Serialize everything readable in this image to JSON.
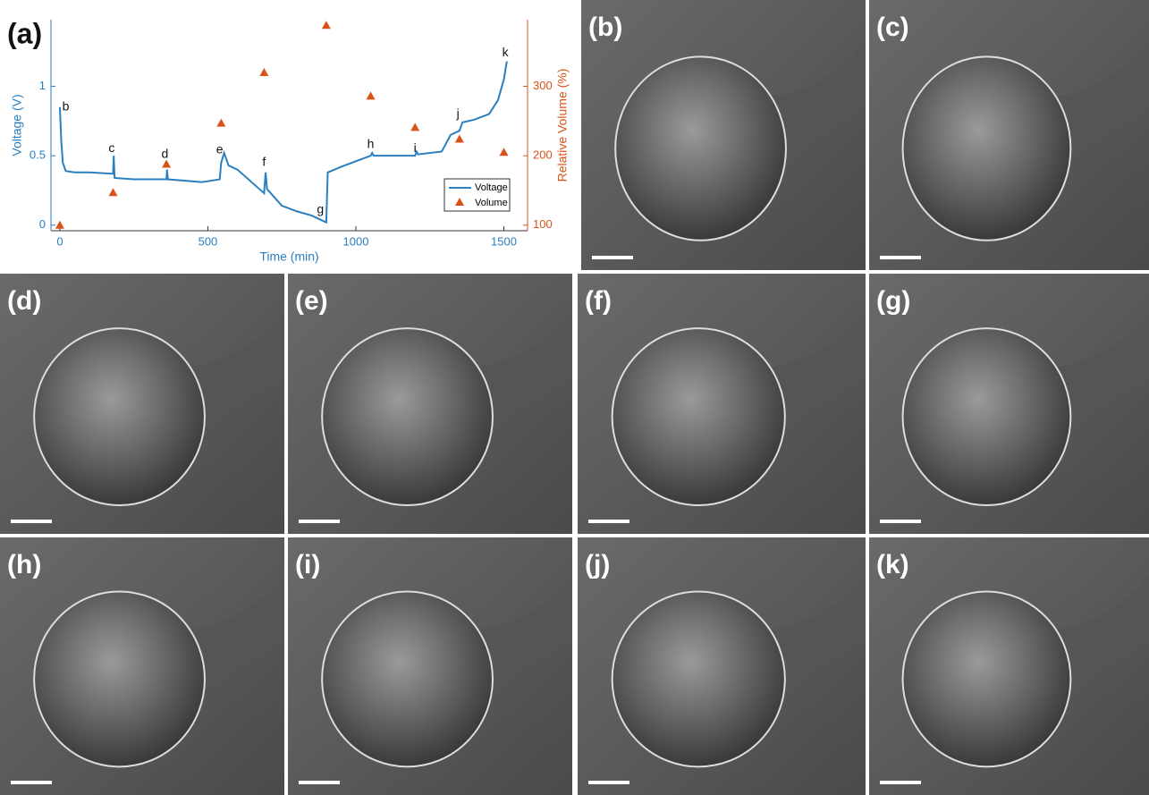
{
  "chart_data": {
    "type": "line",
    "label": "(a)",
    "x_label": "Time (min)",
    "y_label": "Voltage (V)",
    "y2_label": "Relative Volume (%)",
    "xlim": [
      -30,
      1580
    ],
    "xticks": [
      0,
      500,
      1000,
      1500
    ],
    "ylim": [
      -0.04,
      1.48
    ],
    "yticks": [
      0,
      0.5,
      1
    ],
    "y2lim": [
      92,
      396
    ],
    "y2ticks": [
      100,
      200,
      300
    ],
    "legend": "lower right",
    "series": [
      {
        "name": "Voltage",
        "color": "#2a7fc0",
        "x": [
          0,
          5,
          10,
          20,
          50,
          100,
          180,
          182,
          185,
          250,
          360,
          362,
          365,
          480,
          540,
          545,
          555,
          570,
          600,
          690,
          695,
          700,
          750,
          800,
          850,
          900,
          905,
          950,
          1000,
          1050,
          1055,
          1060,
          1200,
          1205,
          1210,
          1290,
          1320,
          1350,
          1360,
          1400,
          1450,
          1480,
          1500,
          1510
        ],
        "values": [
          0.85,
          0.6,
          0.45,
          0.39,
          0.38,
          0.38,
          0.37,
          0.5,
          0.34,
          0.33,
          0.33,
          0.4,
          0.33,
          0.31,
          0.33,
          0.45,
          0.52,
          0.43,
          0.4,
          0.23,
          0.38,
          0.26,
          0.14,
          0.1,
          0.07,
          0.02,
          0.38,
          0.42,
          0.46,
          0.5,
          0.52,
          0.5,
          0.5,
          0.53,
          0.51,
          0.53,
          0.65,
          0.68,
          0.74,
          0.76,
          0.8,
          0.9,
          1.05,
          1.18
        ]
      },
      {
        "name": "Volume",
        "color": "#d95319",
        "axis": "y2",
        "marker": "triangle",
        "x": [
          0,
          180,
          360,
          545,
          690,
          900,
          1050,
          1200,
          1350,
          1500
        ],
        "values": [
          100,
          147,
          188,
          247,
          320,
          388,
          286,
          241,
          224,
          205
        ]
      }
    ],
    "annotations": [
      {
        "text": "b",
        "x": 20,
        "y": 0.85
      },
      {
        "text": "c",
        "x": 175,
        "y": 0.55
      },
      {
        "text": "d",
        "x": 355,
        "y": 0.51
      },
      {
        "text": "e",
        "x": 540,
        "y": 0.54
      },
      {
        "text": "f",
        "x": 690,
        "y": 0.45
      },
      {
        "text": "g",
        "x": 880,
        "y": 0.11
      },
      {
        "text": "h",
        "x": 1050,
        "y": 0.58
      },
      {
        "text": "i",
        "x": 1200,
        "y": 0.55
      },
      {
        "text": "j",
        "x": 1345,
        "y": 0.8
      },
      {
        "text": "k",
        "x": 1505,
        "y": 1.24
      }
    ]
  },
  "panels": [
    {
      "label": "(b)"
    },
    {
      "label": "(c)"
    },
    {
      "label": "(d)"
    },
    {
      "label": "(e)"
    },
    {
      "label": "(f)"
    },
    {
      "label": "(g)"
    },
    {
      "label": "(h)"
    },
    {
      "label": "(i)"
    },
    {
      "label": "(j)"
    },
    {
      "label": "(k)"
    }
  ]
}
